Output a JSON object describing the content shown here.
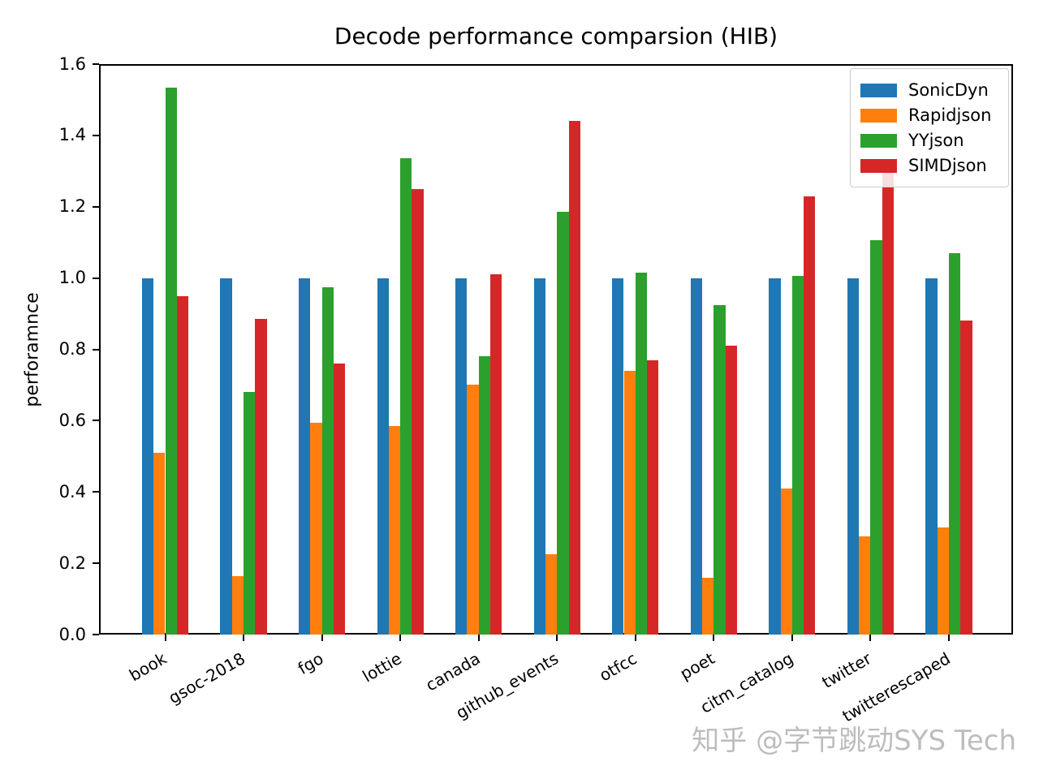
{
  "watermark": "知乎 @字节跳动SYS Tech",
  "chart_data": {
    "type": "bar",
    "title": "Decode performance comparsion (HIB)",
    "xlabel": "",
    "ylabel": "perforamnce",
    "ylim": [
      0,
      1.6
    ],
    "yticks": [
      "0.0",
      "0.2",
      "0.4",
      "0.6",
      "0.8",
      "1.0",
      "1.2",
      "1.4",
      "1.6"
    ],
    "grid": false,
    "legend_position": "upper right",
    "categories": [
      "book",
      "gsoc-2018",
      "fgo",
      "lottie",
      "canada",
      "github_events",
      "otfcc",
      "poet",
      "citm_catalog",
      "twitter",
      "twitterescaped"
    ],
    "series": [
      {
        "name": "SonicDyn",
        "color": "#1f77b4",
        "values": [
          1.0,
          1.0,
          1.0,
          1.0,
          1.0,
          1.0,
          1.0,
          1.0,
          1.0,
          1.0,
          1.0
        ]
      },
      {
        "name": "Rapidjson",
        "color": "#ff7f0e",
        "values": [
          0.51,
          0.165,
          0.595,
          0.585,
          0.7,
          0.225,
          0.74,
          0.16,
          0.41,
          0.275,
          0.3
        ]
      },
      {
        "name": "YYjson",
        "color": "#2ca02c",
        "values": [
          1.535,
          0.68,
          0.975,
          1.335,
          0.78,
          1.185,
          1.015,
          0.925,
          1.005,
          1.105,
          1.07
        ]
      },
      {
        "name": "SIMDjson",
        "color": "#d62728",
        "values": [
          0.95,
          0.885,
          0.76,
          1.25,
          1.01,
          1.44,
          0.77,
          0.81,
          1.23,
          1.3,
          0.88
        ]
      }
    ]
  }
}
